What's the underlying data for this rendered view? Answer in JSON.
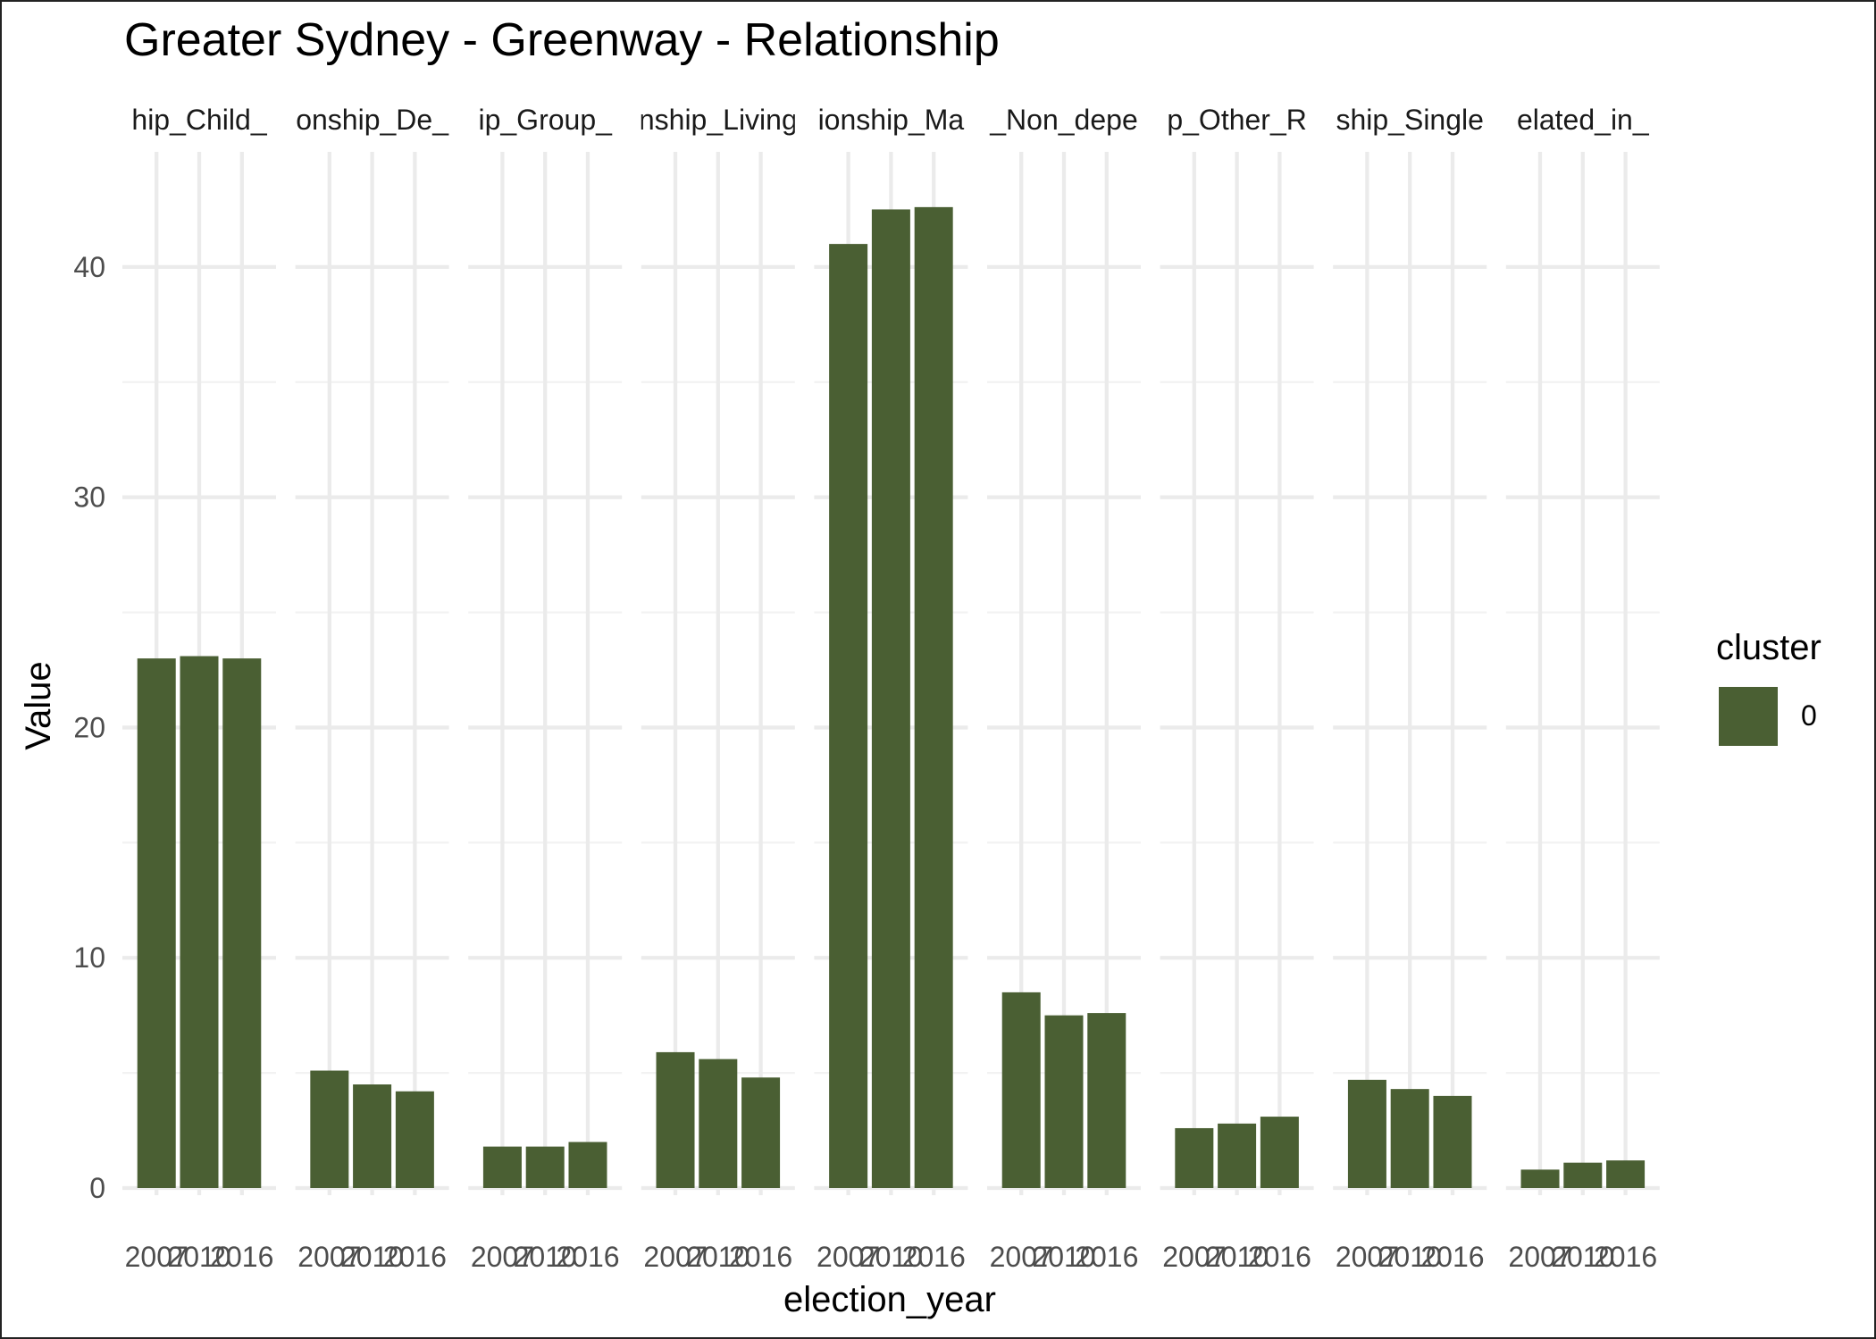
{
  "chart_data": {
    "type": "bar",
    "title": "Greater Sydney - Greenway - Relationship",
    "xlabel": "election_year",
    "ylabel": "Value",
    "ylim": [
      0,
      45
    ],
    "y_ticks": [
      0,
      10,
      20,
      30,
      40
    ],
    "grid": true,
    "legend": {
      "title": "cluster",
      "position": "right",
      "entries": [
        {
          "label": "0",
          "color": "#4a5f33"
        }
      ]
    },
    "categories": [
      "2007",
      "2010",
      "2016"
    ],
    "category_tick_labels": [
      "2007",
      "2010",
      "2016"
    ],
    "facets": [
      {
        "label": "hip_Child_",
        "values": [
          23.0,
          23.1,
          23.0
        ]
      },
      {
        "label": "onship_De_",
        "values": [
          5.1,
          4.5,
          4.2
        ]
      },
      {
        "label": "ip_Group_",
        "values": [
          1.8,
          1.8,
          2.0
        ]
      },
      {
        "label": "nship_Living",
        "values": [
          5.9,
          5.6,
          4.8
        ]
      },
      {
        "label": "ionship_Ma",
        "values": [
          41.0,
          42.5,
          42.6
        ]
      },
      {
        "label": "_Non_depe",
        "values": [
          8.5,
          7.5,
          7.6
        ]
      },
      {
        "label": "p_Other_R",
        "values": [
          2.6,
          2.8,
          3.1
        ]
      },
      {
        "label": "ship_Single",
        "values": [
          4.7,
          4.3,
          4.0
        ]
      },
      {
        "label": "elated_in_",
        "values": [
          0.8,
          1.1,
          1.2
        ]
      }
    ]
  },
  "colors": {
    "bar": "#4a5f33"
  }
}
